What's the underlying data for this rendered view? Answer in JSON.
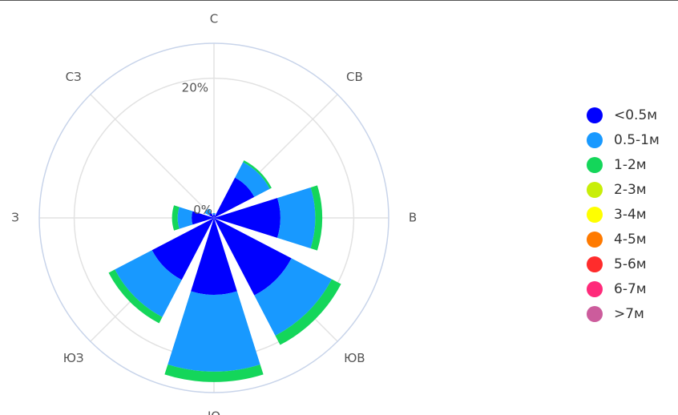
{
  "chart_data": {
    "type": "barpolar",
    "title": "",
    "directions": [
      "С",
      "СВ",
      "В",
      "ЮВ",
      "Ю",
      "ЮЗ",
      "З",
      "СЗ"
    ],
    "radial_ticks": [
      "0%",
      "20%"
    ],
    "radial_range": [
      0,
      25
    ],
    "grid": true,
    "legend_position": "right",
    "series": [
      {
        "name": "<0.5м",
        "color": "#0000ff",
        "values": [
          0.5,
          6.5,
          9.5,
          12.5,
          11.0,
          10.0,
          3.2,
          0.8
        ]
      },
      {
        "name": "0.5-1м",
        "color": "#1899ff",
        "values": [
          0.2,
          2.5,
          5.0,
          6.5,
          11.0,
          6.0,
          2.0,
          0.7
        ]
      },
      {
        "name": "1-2м",
        "color": "#14d65a",
        "values": [
          0,
          0.3,
          1.0,
          1.5,
          1.5,
          1.0,
          0.8,
          0
        ]
      },
      {
        "name": "2-3м",
        "color": "#c8ee08",
        "values": [
          0,
          0,
          0,
          0,
          0,
          0,
          0,
          0
        ]
      },
      {
        "name": "3-4м",
        "color": "#ffff00",
        "values": [
          0,
          0,
          0,
          0,
          0,
          0,
          0,
          0
        ]
      },
      {
        "name": "4-5м",
        "color": "#ff7a00",
        "values": [
          0,
          0,
          0,
          0,
          0,
          0,
          0,
          0
        ]
      },
      {
        "name": "5-6м",
        "color": "#ff2c2c",
        "values": [
          0,
          0,
          0,
          0,
          0,
          0,
          0,
          0
        ]
      },
      {
        "name": "6-7м",
        "color": "#ff2a7a",
        "values": [
          0,
          0,
          0,
          0,
          0,
          0,
          0,
          0
        ]
      },
      {
        "name": ">7м",
        "color": "#cc5c9c",
        "values": [
          0,
          0,
          0,
          0,
          0,
          0,
          0,
          0
        ]
      }
    ]
  }
}
